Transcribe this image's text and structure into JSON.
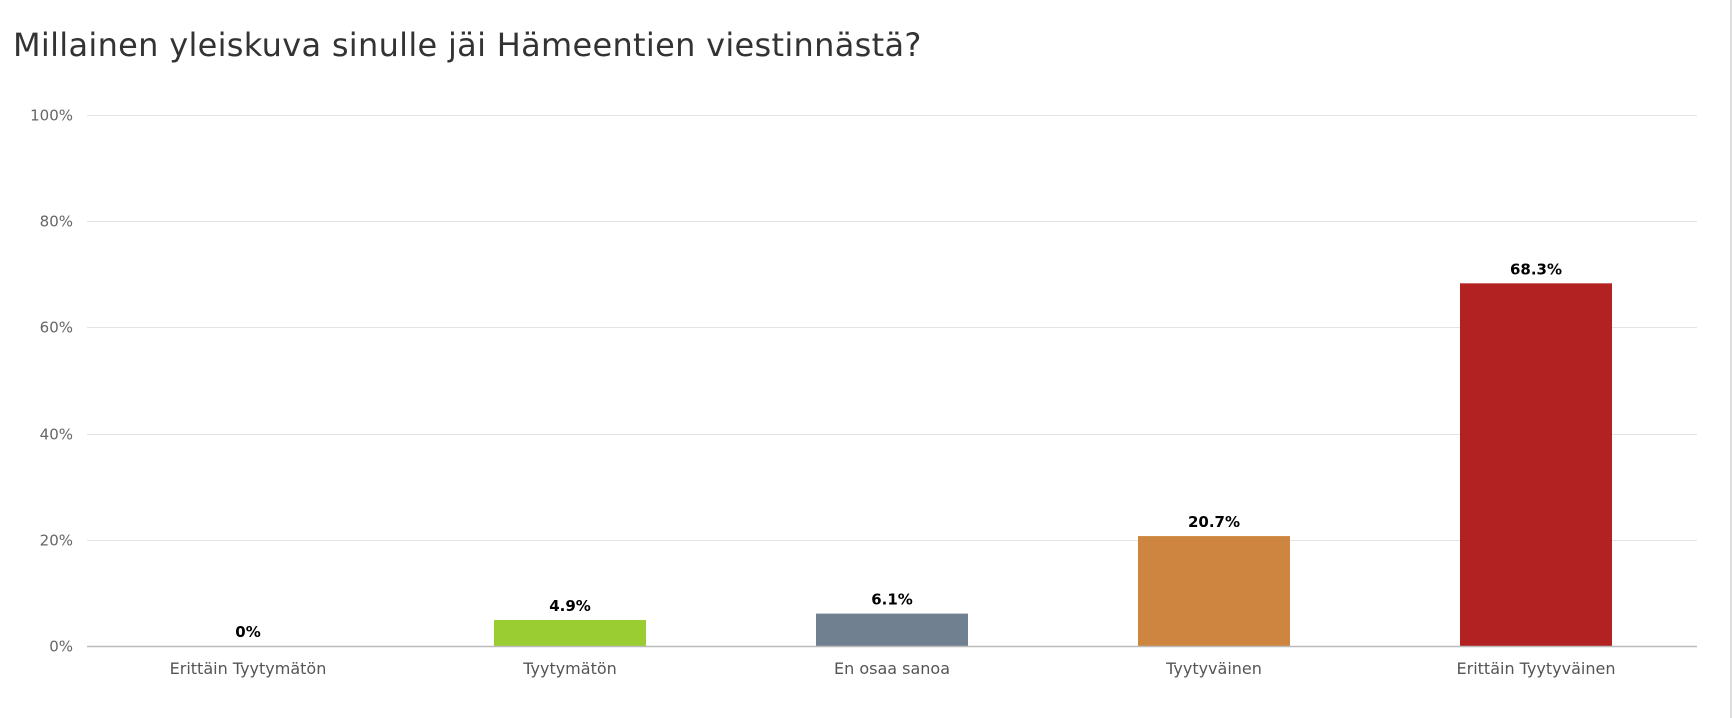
{
  "chart_data": {
    "type": "bar",
    "title": "Millainen yleiskuva sinulle jäi Hämeentien viestinnästä?",
    "categories": [
      "Erittäin Tyytymätön",
      "Tyytymätön",
      "En osaa sanoa",
      "Tyytyväinen",
      "Erittäin Tyytyväinen"
    ],
    "values": [
      0,
      4.9,
      6.1,
      20.7,
      68.3
    ],
    "data_labels": [
      "0%",
      "4.9%",
      "6.1%",
      "20.7%",
      "68.3%"
    ],
    "colors": [
      "#cccccc",
      "#9acd32",
      "#708090",
      "#cd853f",
      "#b22222"
    ],
    "yticks": [
      0,
      20,
      40,
      60,
      80,
      100
    ],
    "ytick_labels": [
      "0%",
      "20%",
      "40%",
      "60%",
      "80%",
      "100%"
    ],
    "ylim": [
      0,
      100
    ],
    "grid": true,
    "xlabel": "",
    "ylabel": ""
  }
}
